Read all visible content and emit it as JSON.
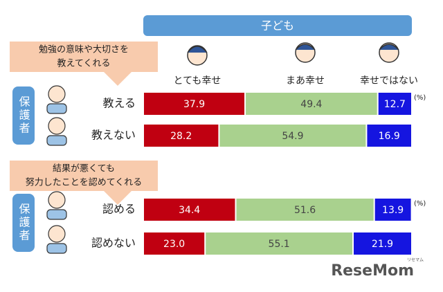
{
  "header": "子ども",
  "legend": {
    "names": [
      "とても幸せ",
      "まあ幸せ",
      "幸せではない"
    ],
    "colors": [
      "#c00011",
      "#a9d18e",
      "#1515e0"
    ]
  },
  "watermark": "ReseMom",
  "watermark_small": "リセマム",
  "chart_data": [
    {
      "type": "bar",
      "orientation": "horizontal",
      "stacked": true,
      "title": [
        "勉強の意味や大切さを",
        "教えてくれる"
      ],
      "side_label": "保護者",
      "unit": "(%)",
      "categories": [
        "教える",
        "教えない"
      ],
      "xlim": [
        0,
        100
      ],
      "series": [
        {
          "values": [
            37.9,
            28.2
          ],
          "value_labels": [
            "37.9",
            "28.2"
          ]
        },
        {
          "values": [
            49.4,
            54.9
          ],
          "value_labels": [
            "49.4",
            "54.9"
          ]
        },
        {
          "values": [
            12.7,
            16.9
          ],
          "value_labels": [
            "12.7",
            "16.9"
          ]
        }
      ]
    },
    {
      "type": "bar",
      "orientation": "horizontal",
      "stacked": true,
      "title": [
        "結果が悪くても",
        "努力したことを認めてくれる"
      ],
      "side_label": "保護者",
      "unit": "(%)",
      "categories": [
        "認める",
        "認めない"
      ],
      "xlim": [
        0,
        100
      ],
      "series": [
        {
          "values": [
            34.4,
            23.0
          ],
          "value_labels": [
            "34.4",
            "23.0"
          ]
        },
        {
          "values": [
            51.6,
            55.1
          ],
          "value_labels": [
            "51.6",
            "55.1"
          ]
        },
        {
          "values": [
            13.9,
            21.9
          ],
          "value_labels": [
            "13.9",
            "21.9"
          ]
        }
      ]
    }
  ]
}
